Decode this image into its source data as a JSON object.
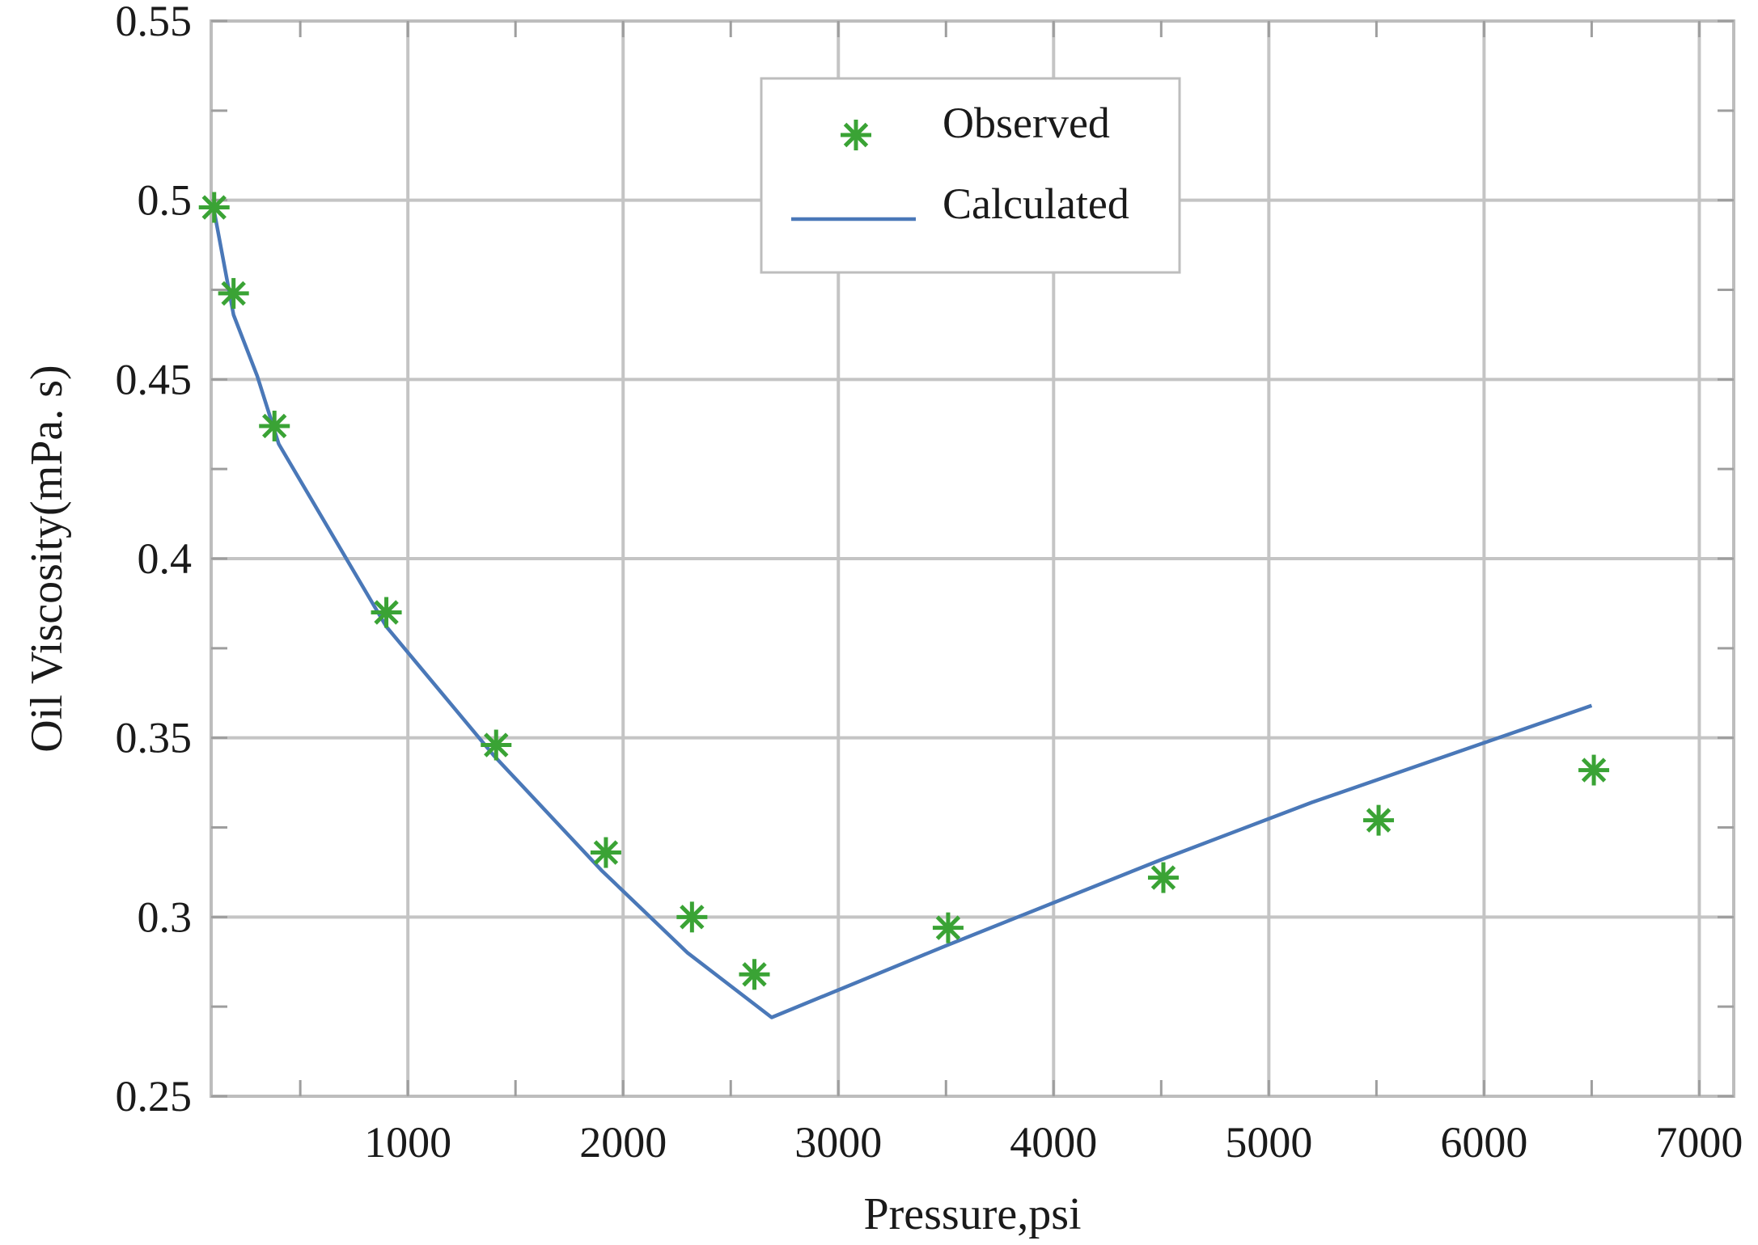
{
  "chart_data": {
    "type": "scatter+line",
    "title": "",
    "xlabel": "Pressure,psi",
    "ylabel": "Oil Viscosity(mPa. s)",
    "xlim": [
      86,
      7160
    ],
    "ylim": [
      0.25,
      0.55
    ],
    "xticks": [
      1000,
      2000,
      3000,
      4000,
      5000,
      6000,
      7000
    ],
    "xtick_labels": [
      "1000",
      "2000",
      "3000",
      "4000",
      "5000",
      "6000",
      "7000"
    ],
    "yticks": [
      0.25,
      0.3,
      0.35,
      0.4,
      0.45,
      0.5,
      0.55
    ],
    "ytick_labels": [
      "0.25",
      "0.3",
      "0.35",
      "0.4",
      "0.45",
      "0.5",
      "0.55"
    ],
    "x_minor_step": 500,
    "y_minor_step": 0.025,
    "grid": true,
    "legend_position": "top-center",
    "series": [
      {
        "name": "Observed",
        "kind": "scatter",
        "marker": "asterisk",
        "color": "#3aa335",
        "x": [
          100,
          190,
          380,
          900,
          1410,
          1920,
          2320,
          2610,
          3510,
          4510,
          5510,
          6510
        ],
        "y": [
          0.498,
          0.474,
          0.437,
          0.385,
          0.348,
          0.318,
          0.3,
          0.284,
          0.297,
          0.311,
          0.327,
          0.341
        ]
      },
      {
        "name": "Calculated",
        "kind": "line",
        "color": "#4a78b8",
        "x": [
          100,
          190,
          300,
          400,
          900,
          1400,
          1900,
          2300,
          2690,
          3500,
          4500,
          5200,
          6500
        ],
        "y": [
          0.497,
          0.468,
          0.451,
          0.432,
          0.381,
          0.345,
          0.313,
          0.29,
          0.272,
          0.292,
          0.316,
          0.332,
          0.359
        ]
      }
    ]
  }
}
